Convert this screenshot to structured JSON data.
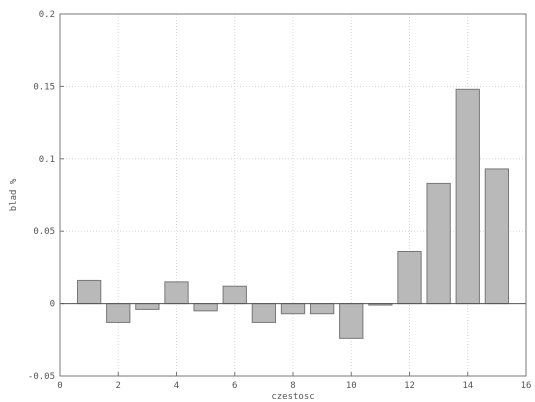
{
  "chart_data": {
    "type": "bar",
    "title": "",
    "xlabel": "czestosc",
    "ylabel": "blad %",
    "x": [
      1,
      2,
      3,
      4,
      5,
      6,
      7,
      8,
      9,
      10,
      11,
      12,
      13,
      14,
      15
    ],
    "values": [
      0.016,
      -0.013,
      -0.004,
      0.015,
      -0.005,
      0.012,
      -0.013,
      -0.007,
      -0.007,
      -0.024,
      -0.001,
      0.036,
      0.083,
      0.148,
      0.093
    ],
    "xlim": [
      0,
      16
    ],
    "ylim": [
      -0.05,
      0.2
    ],
    "xticks": [
      "0",
      "2",
      "4",
      "6",
      "8",
      "10",
      "12",
      "14",
      "16"
    ],
    "yticks": [
      "-0.05",
      "0",
      "0.05",
      "0.1",
      "0.15",
      "0.2"
    ],
    "grid": true,
    "bar_color": "#b9b9b9"
  }
}
